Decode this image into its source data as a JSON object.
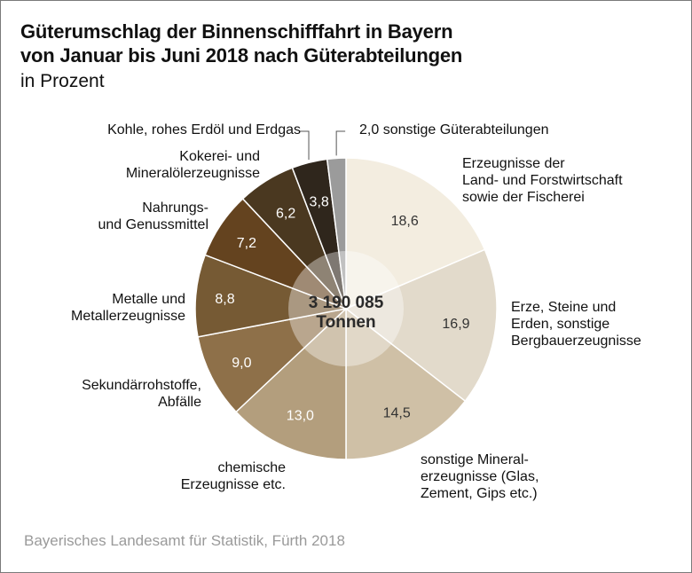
{
  "chart_data": {
    "type": "pie",
    "title": "Güterumschlag der Binnenschifffahrt in Bayern von Januar bis Juni 2018 nach Güterabteilungen",
    "title_lines": [
      "Güterumschlag der Binnenschifffahrt in Bayern",
      "von Januar bis Juni 2018 nach Güterabteilungen"
    ],
    "subtitle": "in Prozent",
    "unit": "Prozent",
    "center_label": {
      "value": "3 190 085",
      "unit": "Tonnen"
    },
    "start": "12 o'clock",
    "direction": "clockwise",
    "slices": [
      {
        "label": "Erzeugnisse der Land- und Forstwirtschaft sowie der Fischerei",
        "label_lines": [
          "Erzeugnisse der",
          "Land- und Forstwirtschaft",
          "sowie der Fischerei"
        ],
        "value": 18.6,
        "value_text": "18,6",
        "color": "#f3ede0",
        "text_color": "#333333"
      },
      {
        "label": "Erze, Steine und Erden, sonstige Bergbauerzeugnisse",
        "label_lines": [
          "Erze, Steine und",
          "Erden, sonstige",
          "Bergbauerzeugnisse"
        ],
        "value": 16.9,
        "value_text": "16,9",
        "color": "#e2dacb",
        "text_color": "#333333"
      },
      {
        "label": "sonstige Mineralerzeugnisse (Glas, Zement, Gips etc.)",
        "label_lines": [
          "sonstige Mineral-",
          "erzeugnisse (Glas,",
          "Zement, Gips etc.)"
        ],
        "value": 14.5,
        "value_text": "14,5",
        "color": "#cfc0a6",
        "text_color": "#333333"
      },
      {
        "label": "chemische Erzeugnisse etc.",
        "label_lines": [
          "chemische",
          "Erzeugnisse etc."
        ],
        "value": 13.0,
        "value_text": "13,0",
        "color": "#b39e7d",
        "text_color": "#ffffff"
      },
      {
        "label": "Sekundärrohstoffe, Abfälle",
        "label_lines": [
          "Sekundärrohstoffe,",
          "Abfälle"
        ],
        "value": 9.0,
        "value_text": "9,0",
        "color": "#8e7049",
        "text_color": "#ffffff"
      },
      {
        "label": "Metalle und Metallerzeugnisse",
        "label_lines": [
          "Metalle und",
          "Metallerzeugnisse"
        ],
        "value": 8.8,
        "value_text": "8,8",
        "color": "#765a34",
        "text_color": "#ffffff"
      },
      {
        "label": "Nahrungs- und Genussmittel",
        "label_lines": [
          "Nahrungs-",
          "und Genussmittel"
        ],
        "value": 7.2,
        "value_text": "7,2",
        "color": "#64431f",
        "text_color": "#ffffff"
      },
      {
        "label": "Kokerei- und Mineralölerzeugnisse",
        "label_lines": [
          "Kokerei- und",
          "Mineralölerzeugnisse"
        ],
        "value": 6.2,
        "value_text": "6,2",
        "color": "#4a3820",
        "text_color": "#ffffff"
      },
      {
        "label": "Kohle, rohes Erdöl und Erdgas",
        "label_lines": [
          "Kohle, rohes Erdöl und Erdgas"
        ],
        "value": 3.8,
        "value_text": "3,8",
        "color": "#2f261c",
        "text_color": "#ffffff"
      },
      {
        "label": "sonstige Güterabteilungen",
        "label_lines": [
          "2,0 sonstige Güterabteilungen"
        ],
        "value": 2.0,
        "value_text": "2,0",
        "color": "#9b9b9b",
        "text_color": "#333333"
      }
    ],
    "source": "Bayerisches Landesamt für Statistik, Fürth 2018"
  }
}
